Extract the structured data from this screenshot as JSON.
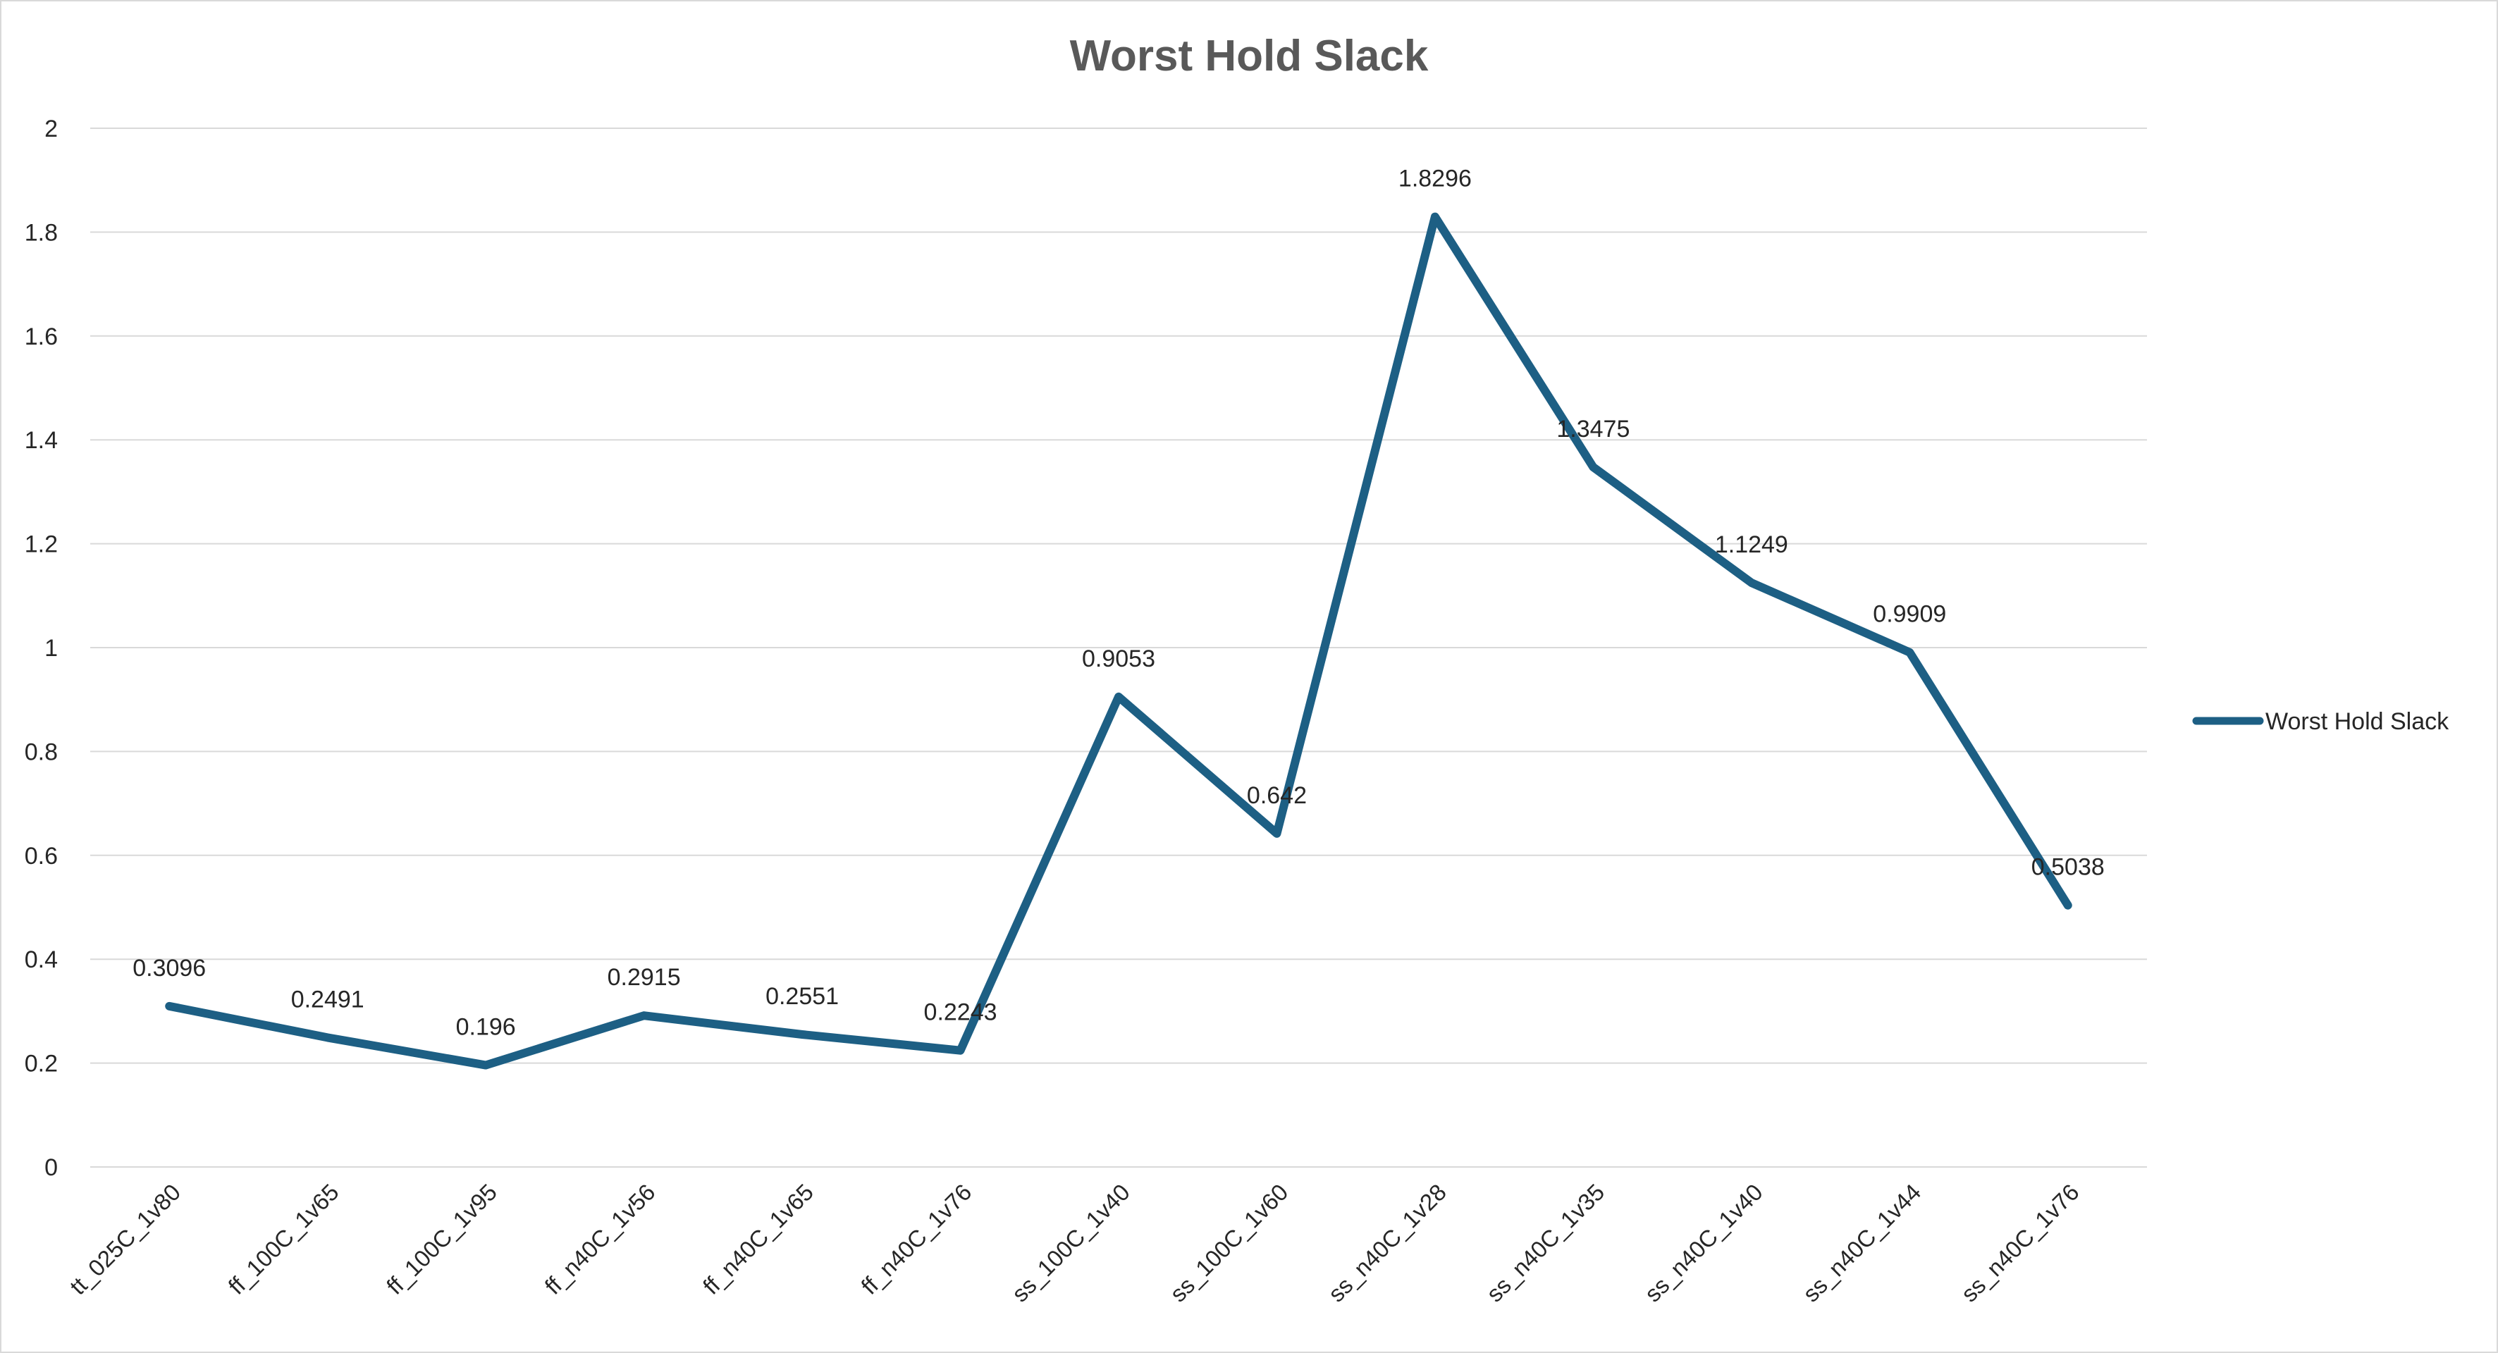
{
  "chart_data": {
    "type": "line",
    "title": "Worst Hold Slack",
    "xlabel": "",
    "ylabel": "",
    "categories": [
      "tt_025C_1v80",
      "ff_100C_1v65",
      "ff_100C_1v95",
      "ff_n40C_1v56",
      "ff_n40C_1v65",
      "ff_n40C_1v76",
      "ss_100C_1v40",
      "ss_100C_1v60",
      "ss_n40C_1v28",
      "ss_n40C_1v35",
      "ss_n40C_1v40",
      "ss_n40C_1v44",
      "ss_n40C_1v76"
    ],
    "series": [
      {
        "name": "Worst Hold Slack",
        "values": [
          0.3096,
          0.2491,
          0.196,
          0.2915,
          0.2551,
          0.2243,
          0.9053,
          0.642,
          1.8296,
          1.3475,
          1.1249,
          0.9909,
          0.5038
        ],
        "data_labels": [
          "0.3096",
          "0.2491",
          "0.196",
          "0.2915",
          "0.2551",
          "0.2243",
          "0.9053",
          "0.642",
          "1.8296",
          "1.3475",
          "1.1249",
          "0.9909",
          "0.5038"
        ],
        "color": "#1d5f84"
      }
    ],
    "ylim": [
      0,
      2
    ],
    "yticks": [
      "0",
      "0.2",
      "0.4",
      "0.6",
      "0.8",
      "1",
      "1.2",
      "1.4",
      "1.6",
      "1.8",
      "2"
    ],
    "grid": true,
    "legend": "right",
    "colors": {
      "series": "#1d5f84",
      "grid": "#d9d9d9",
      "text": "#262626",
      "title": "#595959"
    }
  }
}
